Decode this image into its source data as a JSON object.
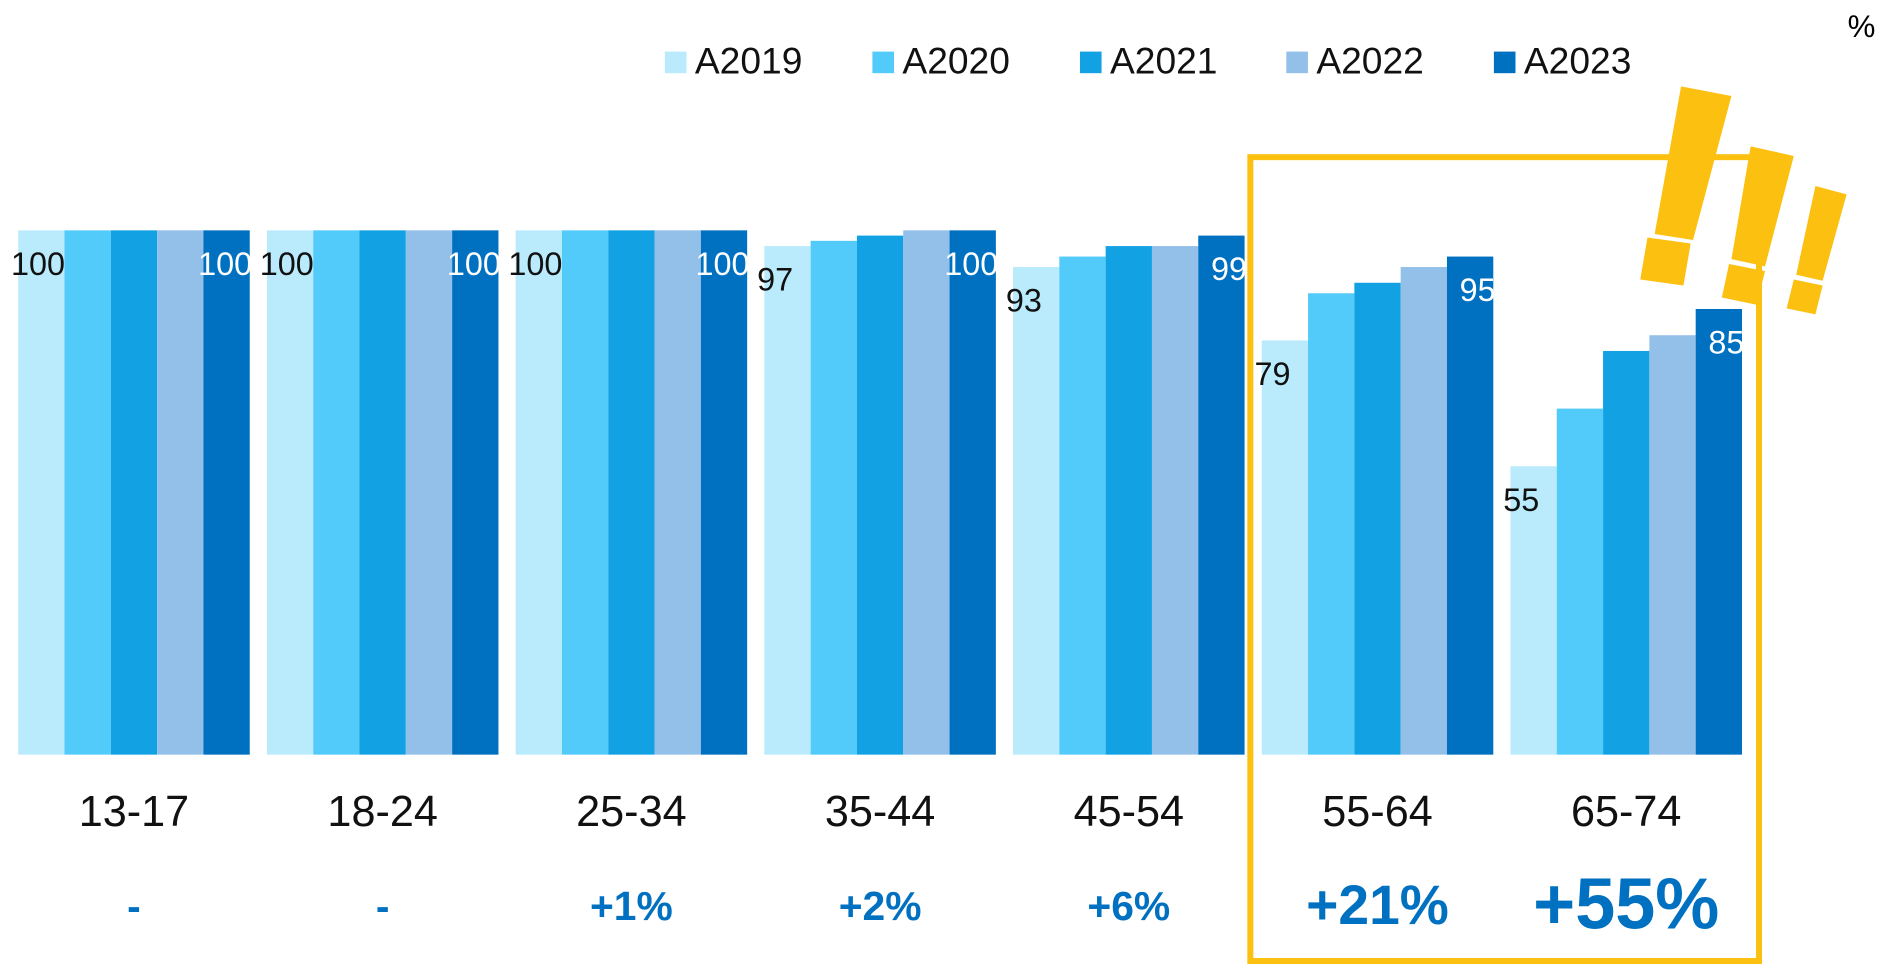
{
  "chart_data": {
    "type": "bar",
    "unit": "%",
    "categories": [
      "13-17",
      "18-24",
      "25-34",
      "35-44",
      "45-54",
      "55-64",
      "65-74"
    ],
    "changes": [
      "-",
      "-",
      "+1%",
      "+2%",
      "+6%",
      "+21%",
      "+55%"
    ],
    "series": [
      {
        "name": "A2019",
        "color": "#b9ebfc",
        "values": [
          100,
          100,
          100,
          97,
          93,
          79,
          55
        ]
      },
      {
        "name": "A2020",
        "color": "#52cbfa",
        "values": [
          100,
          100,
          100,
          98,
          95,
          88,
          66
        ]
      },
      {
        "name": "A2021",
        "color": "#12a2e4",
        "values": [
          100,
          100,
          100,
          99,
          97,
          90,
          77
        ]
      },
      {
        "name": "A2022",
        "color": "#93c0e8",
        "values": [
          100,
          100,
          100,
          100,
          97,
          93,
          80
        ]
      },
      {
        "name": "A2023",
        "color": "#0070c0",
        "values": [
          100,
          100,
          100,
          100,
          99,
          95,
          85
        ]
      }
    ],
    "ylim": [
      0,
      100
    ]
  }
}
